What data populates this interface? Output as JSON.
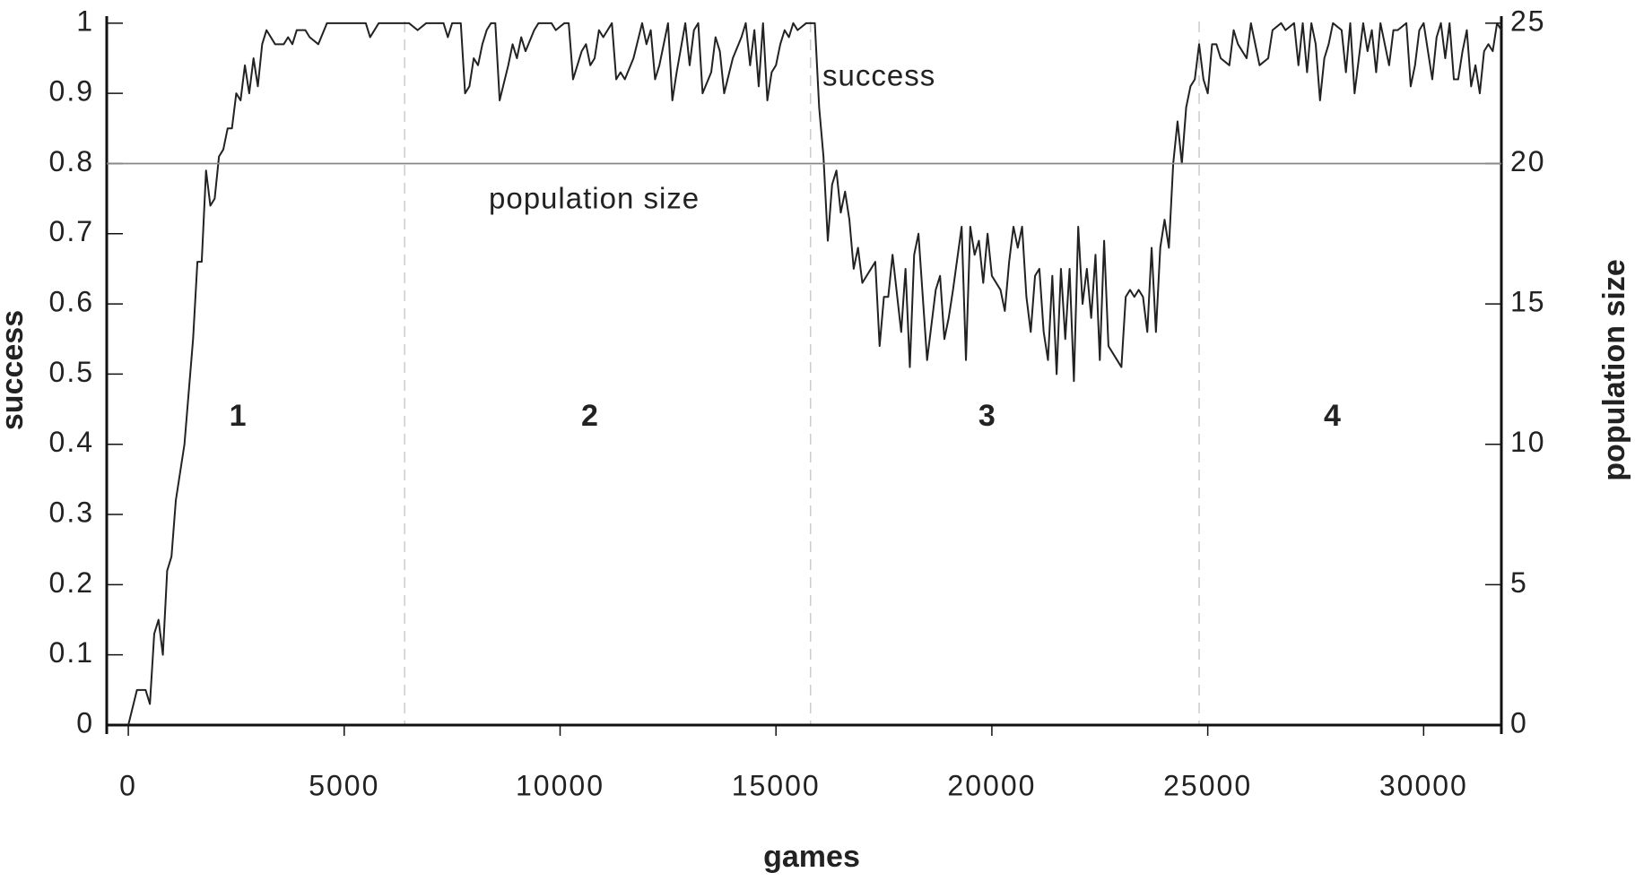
{
  "chart_data": {
    "type": "line",
    "x_label": "games",
    "y_label": "success",
    "y2_label": "population size",
    "xlim": [
      -500,
      31800
    ],
    "xticks": [
      0,
      5000,
      10000,
      15000,
      20000,
      25000,
      30000
    ],
    "ylim": [
      0,
      1.01
    ],
    "yticks": [
      0,
      0.1,
      0.2,
      0.3,
      0.4,
      0.5,
      0.6,
      0.7,
      0.8,
      0.9,
      1
    ],
    "y2lim": [
      0,
      25.25
    ],
    "y2ticks": [
      0,
      5,
      10,
      15,
      20,
      25
    ],
    "phase_boundaries": [
      6400,
      15800,
      24800
    ],
    "phases": [
      "1",
      "2",
      "3",
      "4"
    ],
    "series": [
      {
        "name": "success",
        "color": "#222222",
        "x": [
          0,
          200,
          400,
          500,
          600,
          700,
          800,
          900,
          1000,
          1100,
          1300,
          1500,
          1600,
          1700,
          1800,
          1900,
          2000,
          2100,
          2200,
          2300,
          2400,
          2500,
          2600,
          2700,
          2800,
          2900,
          3000,
          3100,
          3200,
          3400,
          3600,
          3700,
          3800,
          3900,
          4100,
          4200,
          4400,
          4600,
          5000,
          5500,
          5600,
          5800,
          6000,
          6500,
          6700,
          6900,
          7100,
          7300,
          7400,
          7500,
          7700,
          7800,
          7900,
          8000,
          8100,
          8200,
          8300,
          8400,
          8500,
          8600,
          8800,
          8900,
          9000,
          9100,
          9200,
          9400,
          9500,
          9800,
          9900,
          10100,
          10200,
          10300,
          10500,
          10600,
          10700,
          10800,
          10900,
          11000,
          11200,
          11300,
          11400,
          11500,
          11700,
          11900,
          12000,
          12100,
          12200,
          12300,
          12500,
          12600,
          12700,
          12900,
          13000,
          13100,
          13200,
          13300,
          13500,
          13600,
          13700,
          13800,
          14000,
          14200,
          14300,
          14400,
          14500,
          14600,
          14700,
          14800,
          14900,
          15000,
          15100,
          15200,
          15300,
          15400,
          15500,
          15700,
          15900,
          16000,
          16100,
          16200,
          16300,
          16400,
          16500,
          16600,
          16700,
          16800,
          16900,
          17000,
          17100,
          17200,
          17300,
          17400,
          17500,
          17600,
          17700,
          17900,
          18000,
          18100,
          18200,
          18300,
          18400,
          18500,
          18700,
          18800,
          18900,
          19000,
          19100,
          19300,
          19400,
          19500,
          19600,
          19700,
          19800,
          19900,
          20000,
          20200,
          20300,
          20400,
          20500,
          20600,
          20700,
          20800,
          20900,
          21000,
          21100,
          21200,
          21300,
          21400,
          21500,
          21600,
          21700,
          21800,
          21900,
          22000,
          22100,
          22200,
          22300,
          22400,
          22500,
          22600,
          22700,
          22800,
          23000,
          23100,
          23200,
          23300,
          23400,
          23500,
          23600,
          23700,
          23800,
          23900,
          24000,
          24100,
          24200,
          24300,
          24400,
          24500,
          24600,
          24700,
          24800,
          24900,
          25000,
          25100,
          25200,
          25300,
          25500,
          25600,
          25700,
          25900,
          26000,
          26200,
          26400,
          26500,
          26700,
          26800,
          27000,
          27100,
          27200,
          27300,
          27400,
          27500,
          27600,
          27700,
          27800,
          27900,
          28100,
          28200,
          28300,
          28400,
          28600,
          28700,
          28800,
          28900,
          29000,
          29200,
          29300,
          29400,
          29600,
          29700,
          29800,
          29900,
          30000,
          30200,
          30300,
          30400,
          30500,
          30600,
          30700,
          30800,
          30900,
          31000,
          31100,
          31200,
          31300,
          31400,
          31500,
          31600,
          31700,
          31800
        ],
        "values": [
          0,
          0.05,
          0.05,
          0.03,
          0.13,
          0.15,
          0.1,
          0.22,
          0.24,
          0.32,
          0.4,
          0.55,
          0.66,
          0.66,
          0.79,
          0.74,
          0.75,
          0.81,
          0.82,
          0.85,
          0.85,
          0.9,
          0.89,
          0.94,
          0.9,
          0.95,
          0.91,
          0.97,
          0.99,
          0.97,
          0.97,
          0.98,
          0.97,
          0.99,
          0.99,
          0.98,
          0.97,
          1,
          1,
          1,
          0.98,
          1,
          1,
          1,
          0.99,
          1,
          1,
          1,
          0.98,
          1,
          1,
          0.9,
          0.91,
          0.95,
          0.94,
          0.97,
          0.99,
          1,
          1,
          0.89,
          0.94,
          0.97,
          0.95,
          0.98,
          0.96,
          0.99,
          1,
          1,
          0.99,
          1,
          1,
          0.92,
          0.96,
          0.97,
          0.94,
          0.95,
          0.99,
          0.98,
          1,
          0.92,
          0.93,
          0.92,
          0.95,
          1,
          0.97,
          0.99,
          0.92,
          0.94,
          1,
          0.89,
          0.93,
          1,
          0.94,
          0.99,
          1,
          0.9,
          0.93,
          0.98,
          0.96,
          0.9,
          0.95,
          0.98,
          1,
          0.94,
          0.99,
          0.91,
          1,
          0.89,
          0.93,
          0.94,
          0.97,
          0.99,
          0.98,
          1,
          0.99,
          1,
          1,
          0.88,
          0.81,
          0.69,
          0.77,
          0.79,
          0.73,
          0.76,
          0.72,
          0.65,
          0.68,
          0.63,
          0.64,
          0.65,
          0.66,
          0.54,
          0.61,
          0.61,
          0.67,
          0.56,
          0.65,
          0.51,
          0.67,
          0.7,
          0.61,
          0.52,
          0.62,
          0.64,
          0.55,
          0.58,
          0.62,
          0.71,
          0.52,
          0.71,
          0.67,
          0.69,
          0.63,
          0.7,
          0.64,
          0.62,
          0.59,
          0.66,
          0.71,
          0.68,
          0.71,
          0.61,
          0.56,
          0.64,
          0.65,
          0.56,
          0.52,
          0.64,
          0.5,
          0.65,
          0.55,
          0.65,
          0.49,
          0.71,
          0.6,
          0.65,
          0.58,
          0.67,
          0.52,
          0.69,
          0.54,
          0.53,
          0.51,
          0.61,
          0.62,
          0.61,
          0.62,
          0.61,
          0.56,
          0.68,
          0.56,
          0.68,
          0.72,
          0.68,
          0.8,
          0.86,
          0.8,
          0.88,
          0.91,
          0.92,
          0.97,
          0.92,
          0.9,
          0.97,
          0.97,
          0.95,
          0.94,
          0.99,
          0.97,
          0.95,
          1,
          0.94,
          0.95,
          0.99,
          1,
          0.99,
          1,
          0.94,
          1,
          0.93,
          1,
          0.97,
          0.89,
          0.95,
          0.97,
          1,
          0.99,
          0.93,
          1,
          0.9,
          1,
          0.96,
          0.99,
          0.93,
          1,
          0.94,
          0.99,
          0.99,
          1,
          0.91,
          0.94,
          0.99,
          1,
          0.92,
          0.98,
          1,
          0.95,
          1,
          0.92,
          0.92,
          0.96,
          0.99,
          0.91,
          0.94,
          0.9,
          0.96,
          0.97,
          0.96,
          1,
          0.99
        ]
      },
      {
        "name": "population size",
        "color": "#888888",
        "axis": "y2",
        "x": [
          -500,
          31800
        ],
        "values": [
          20,
          20
        ]
      }
    ]
  }
}
